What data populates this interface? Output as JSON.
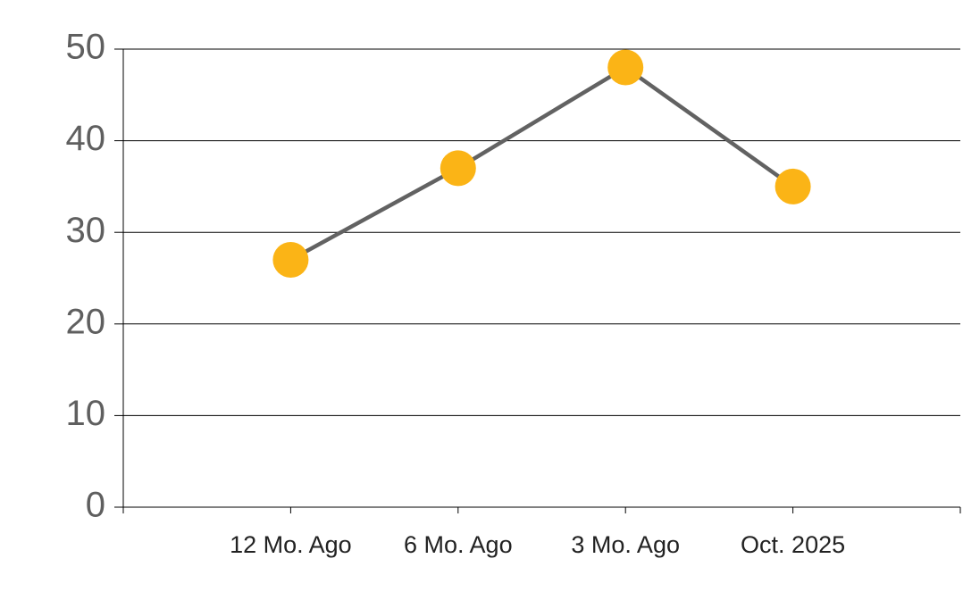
{
  "chart_data": {
    "type": "line",
    "categories": [
      "12 Mo. Ago",
      "6 Mo. Ago",
      "3 Mo. Ago",
      "Oct. 2025"
    ],
    "series": [
      {
        "values": [
          27,
          37,
          48,
          35
        ],
        "color": "#fbb416",
        "line_color": "#626262"
      }
    ],
    "ylim": [
      0,
      50
    ],
    "yticks": [
      0,
      10,
      20,
      30,
      40,
      50
    ],
    "grid": true
  }
}
